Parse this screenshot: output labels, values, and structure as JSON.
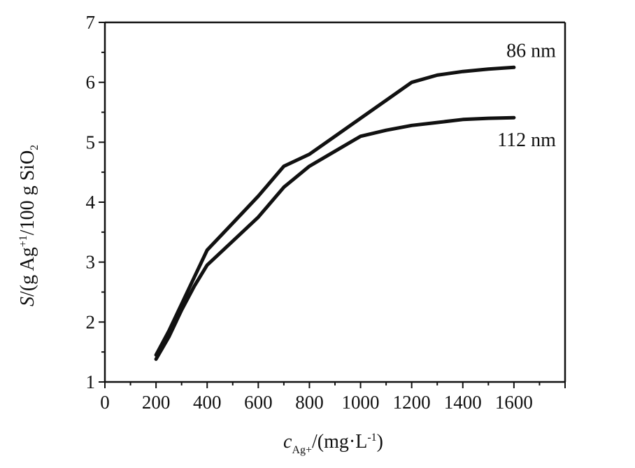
{
  "chart_data": {
    "type": "line",
    "xlabel": {
      "symbol": "c",
      "subscript": "Ag+",
      "rest": "/(mg·L",
      "sup": "-1",
      "close": ")"
    },
    "ylabel": {
      "symbol": "S",
      "part1": "/(g Ag",
      "sup": "+1",
      "part2": "/100 g SiO",
      "sub": "2"
    },
    "xlim": [
      0,
      1800
    ],
    "ylim": [
      1,
      7
    ],
    "xticks": [
      0,
      200,
      400,
      600,
      800,
      1000,
      1200,
      1400,
      1600
    ],
    "xtick_labels": [
      "0",
      "200",
      "400",
      "600",
      "800",
      "1000",
      "1200",
      "1400",
      "1600"
    ],
    "yticks": [
      1,
      2,
      3,
      4,
      5,
      6,
      7
    ],
    "ytick_labels": [
      "1",
      "2",
      "3",
      "4",
      "5",
      "6",
      "7"
    ],
    "grid": false,
    "line_color": "#111111",
    "series": [
      {
        "name": "86 nm",
        "x": [
          200,
          250,
          300,
          350,
          400,
          500,
          600,
          700,
          800,
          900,
          1000,
          1100,
          1200,
          1300,
          1400,
          1500,
          1600
        ],
        "y": [
          1.45,
          1.85,
          2.3,
          2.75,
          3.2,
          3.65,
          4.1,
          4.6,
          4.8,
          5.1,
          5.4,
          5.7,
          6.0,
          6.12,
          6.18,
          6.22,
          6.25
        ]
      },
      {
        "name": "112 nm",
        "x": [
          200,
          250,
          300,
          350,
          400,
          500,
          600,
          700,
          800,
          900,
          1000,
          1100,
          1200,
          1300,
          1400,
          1500,
          1600
        ],
        "y": [
          1.38,
          1.75,
          2.2,
          2.6,
          2.95,
          3.35,
          3.75,
          4.25,
          4.6,
          4.85,
          5.1,
          5.2,
          5.28,
          5.33,
          5.38,
          5.4,
          5.41
        ]
      }
    ]
  }
}
